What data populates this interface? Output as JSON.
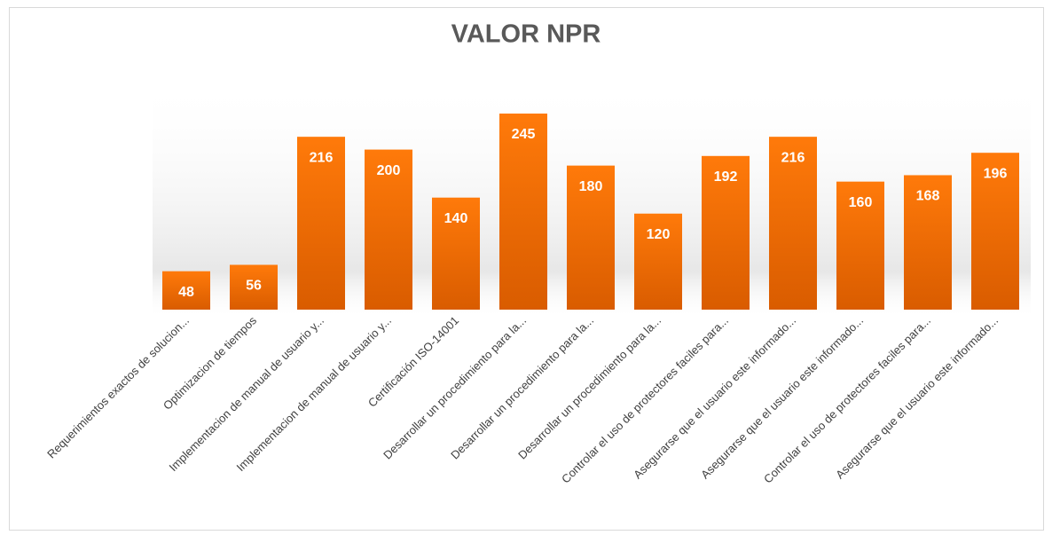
{
  "chart_data": {
    "type": "bar",
    "title": "VALOR NPR",
    "categories": [
      "Requerimientos exactos de solucion...",
      "Optimizacion de tiempos",
      "Implementacion de manual de usuario y...",
      "Implementacion de manual de usuario y...",
      "Certificación ISO-14001",
      "Desarrollar un procedimiento para la...",
      "Desarrollar un procedimiento para la...",
      "Desarrollar un procedimiento para la...",
      "Controlar el uso de protectores faciles para...",
      "Asegurarse que el usuario este informado...",
      "Asegurarse que el usuario este informado...",
      "Controlar el uso de protectores faciles para...",
      "Asegurarse que el usuario este informado..."
    ],
    "values": [
      48,
      56,
      216,
      200,
      140,
      245,
      180,
      120,
      192,
      216,
      160,
      168,
      196
    ],
    "color": "#f57000"
  }
}
